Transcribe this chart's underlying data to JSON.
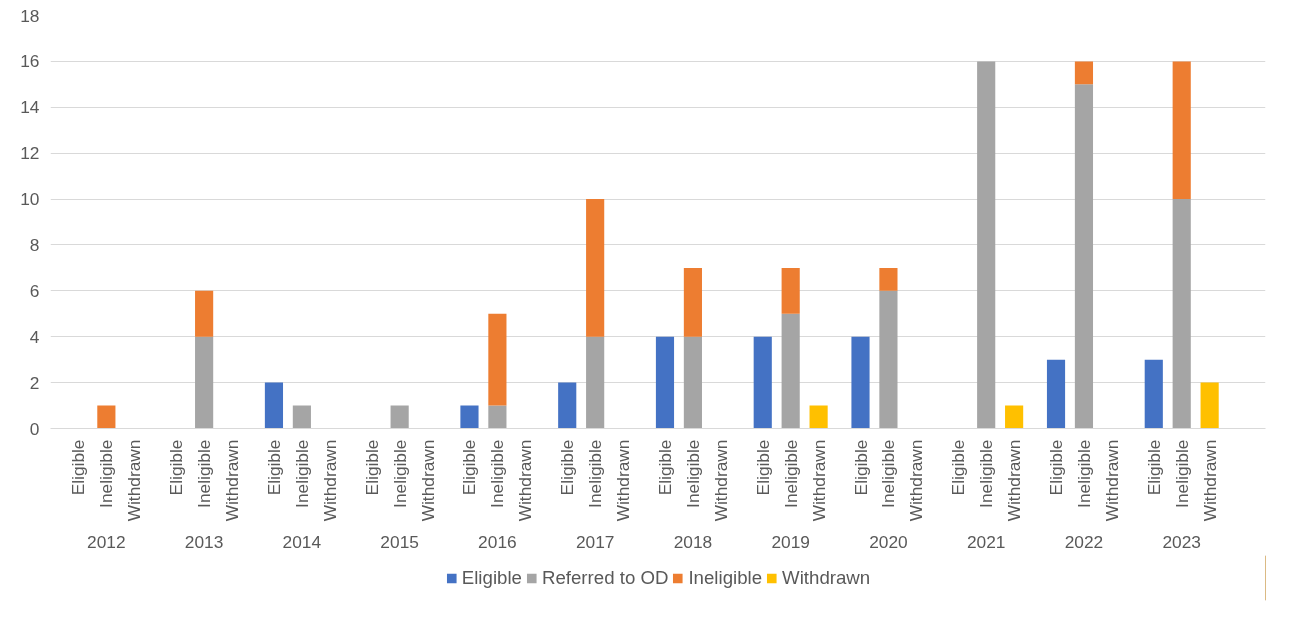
{
  "chart_data": {
    "type": "bar",
    "stacked": true,
    "categories": [
      "Eligible",
      "Ineligible",
      "Withdrawn",
      "Eligible",
      "Ineligible",
      "Withdrawn",
      "Eligible",
      "Ineligible",
      "Withdrawn",
      "Eligible",
      "Ineligible",
      "Withdrawn",
      "Eligible",
      "Ineligible",
      "Withdrawn",
      "Eligible",
      "Ineligible",
      "Withdrawn",
      "Eligible",
      "Ineligible",
      "Withdrawn",
      "Eligible",
      "Ineligible",
      "Withdrawn",
      "Eligible",
      "Ineligible",
      "Withdrawn",
      "Eligible",
      "Ineligible",
      "Withdrawn",
      "Eligible",
      "Ineligible",
      "Withdrawn",
      "Eligible",
      "Ineligible",
      "Withdrawn"
    ],
    "annotations": [
      "2012",
      "2013",
      "2014",
      "2015",
      "2016",
      "2017",
      "2018",
      "2019",
      "2020",
      "2021",
      "2022",
      "2023"
    ],
    "series": [
      {
        "name": "Eligible",
        "color": "#4472c4",
        "values": [
          0,
          null,
          null,
          0,
          null,
          null,
          2,
          null,
          null,
          0,
          null,
          null,
          1,
          null,
          null,
          2,
          null,
          null,
          4,
          null,
          null,
          4,
          null,
          null,
          4,
          null,
          null,
          0,
          null,
          null,
          3,
          null,
          null,
          3,
          null,
          null
        ]
      },
      {
        "name": "Referred to OD",
        "color": "#a5a5a5",
        "values": [
          null,
          0,
          null,
          null,
          4,
          null,
          null,
          1,
          null,
          null,
          1,
          null,
          null,
          1,
          null,
          null,
          4,
          null,
          null,
          4,
          null,
          null,
          5,
          null,
          null,
          6,
          null,
          null,
          16,
          null,
          null,
          15,
          null,
          null,
          10,
          null
        ]
      },
      {
        "name": "Ineligible",
        "color": "#ed7d31",
        "values": [
          null,
          1,
          null,
          null,
          2,
          null,
          null,
          0,
          null,
          null,
          0,
          null,
          null,
          4,
          null,
          null,
          6,
          null,
          null,
          3,
          null,
          null,
          2,
          null,
          null,
          1,
          null,
          null,
          0,
          null,
          null,
          1,
          null,
          null,
          6,
          null
        ]
      },
      {
        "name": "Withdrawn",
        "color": "#ffc000",
        "values": [
          null,
          null,
          0,
          null,
          null,
          0,
          null,
          null,
          0,
          null,
          null,
          0,
          null,
          null,
          0,
          null,
          null,
          0,
          null,
          null,
          0,
          null,
          null,
          1,
          null,
          null,
          0,
          null,
          null,
          1,
          null,
          null,
          0,
          null,
          null,
          2
        ]
      }
    ],
    "ylim": [
      0,
      18
    ],
    "yticks": [
      0,
      2,
      4,
      6,
      8,
      10,
      12,
      14,
      16,
      18
    ],
    "grid": "y",
    "legend": "bottom"
  }
}
